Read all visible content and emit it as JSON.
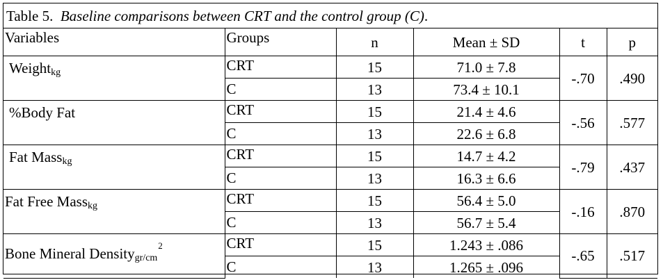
{
  "caption": {
    "prefix": "Table 5.",
    "title": "Baseline comparisons between CRT and the control group (C)",
    "suffix": "."
  },
  "headers": {
    "variables": "Variables",
    "groups": "Groups",
    "n": "n",
    "mean_sd": "Mean ± SD",
    "t": "t",
    "p": "p"
  },
  "rows": [
    {
      "variable": "Weight",
      "unit": "kg",
      "power": "",
      "t": "-.70",
      "p": ".490",
      "groups": [
        {
          "group": "CRT",
          "n": "15",
          "mean_sd": "71.0 ± 7.8"
        },
        {
          "group": "C",
          "n": "13",
          "mean_sd": "73.4 ± 10.1"
        }
      ]
    },
    {
      "variable": "%Body Fat",
      "unit": "",
      "power": "",
      "t": "-.56",
      "p": ".577",
      "groups": [
        {
          "group": "CRT",
          "n": "15",
          "mean_sd": "21.4 ± 4.6"
        },
        {
          "group": "C",
          "n": "13",
          "mean_sd": "22.6 ± 6.8"
        }
      ]
    },
    {
      "variable": "Fat Mass",
      "unit": "kg",
      "power": "",
      "t": "-.79",
      "p": ".437",
      "groups": [
        {
          "group": "CRT",
          "n": "15",
          "mean_sd": "14.7 ± 4.2"
        },
        {
          "group": "C",
          "n": "13",
          "mean_sd": "16.3 ± 6.6"
        }
      ]
    },
    {
      "variable": "Fat Free Mass",
      "unit": "kg",
      "power": "",
      "t": "-.16",
      "p": ".870",
      "groups": [
        {
          "group": "CRT",
          "n": "15",
          "mean_sd": "56.4 ± 5.0"
        },
        {
          "group": "C",
          "n": "13",
          "mean_sd": "56.7 ± 5.4"
        }
      ]
    },
    {
      "variable": "Bone Mineral Density",
      "unit": "gr/cm",
      "power": "2",
      "t": "-.65",
      "p": ".517",
      "groups": [
        {
          "group": "CRT",
          "n": "15",
          "mean_sd": "1.243 ± .086"
        },
        {
          "group": "C",
          "n": "13",
          "mean_sd": "1.265 ± .096"
        }
      ]
    }
  ]
}
